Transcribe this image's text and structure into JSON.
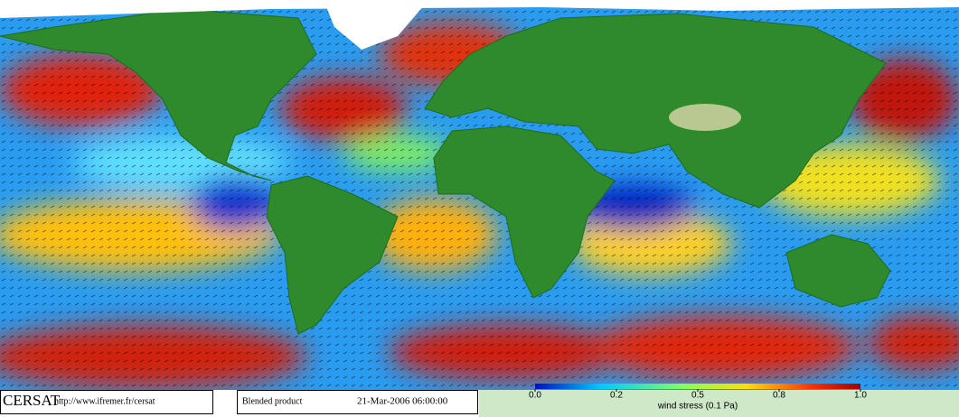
{
  "header": {
    "logo": "CERSAT",
    "url": "http://www.ifremer.fr/cersat",
    "product": "Blended product",
    "timestamp": "21-Mar-2006 06:00:00"
  },
  "colorbar": {
    "label": "wind stress (0.1 Pa)",
    "ticks": [
      {
        "value": 0,
        "label": "0.0"
      },
      0.2,
      0.5,
      0.8,
      {
        "value": 1,
        "label": "1.0"
      }
    ]
  }
}
